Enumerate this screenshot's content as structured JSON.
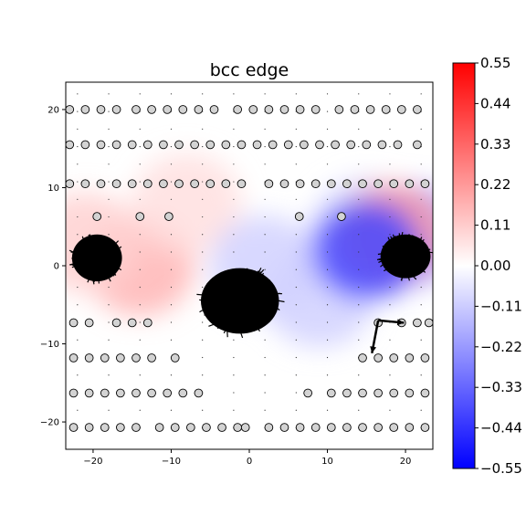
{
  "chart_data": {
    "type": "heatmap",
    "title": "bcc edge",
    "xlabel": "",
    "ylabel": "",
    "xlim": [
      -23.5,
      23.5
    ],
    "ylim": [
      -23.5,
      23.5
    ],
    "x_ticks": [
      -20,
      -10,
      0,
      10,
      20
    ],
    "y_ticks": [
      20,
      10,
      0,
      -10,
      -20
    ],
    "colormap": "bwr",
    "colorbar": {
      "range": [
        -0.55,
        0.55
      ],
      "ticks": [
        "0.55",
        "0.44",
        "0.33",
        "0.22",
        "0.11",
        "0.00",
        "-0.11",
        "-0.22",
        "-0.33",
        "-0.44",
        "-0.55"
      ],
      "placement": "right"
    },
    "field_regions": [
      {
        "x": -14,
        "y": 0,
        "value": 0.16
      },
      {
        "x": -21,
        "y": 3,
        "value": 0.1
      },
      {
        "x": -8,
        "y": 8,
        "value": 0.07
      },
      {
        "x": 2,
        "y": 0,
        "value": -0.1
      },
      {
        "x": 9,
        "y": -4,
        "value": -0.1
      },
      {
        "x": 15,
        "y": 5,
        "value": -0.07
      },
      {
        "x": 21,
        "y": 4,
        "value": -0.2
      },
      {
        "x": 18,
        "y": 4,
        "value": 0.22
      },
      {
        "x": 15,
        "y": 2,
        "value": -0.4
      }
    ],
    "atom_rows": [
      {
        "y": 20,
        "xs": [
          -23,
          -21,
          -19,
          -17,
          -14.5,
          -12.5,
          -10.5,
          -8.5,
          -6.5,
          -4.5,
          -1.5,
          0.5,
          2.5,
          4.5,
          6.5,
          8.5,
          11.5,
          13.5,
          15.5,
          17.5,
          19.5,
          21.5
        ]
      },
      {
        "y": 15.5,
        "xs": [
          -23,
          -21,
          -19,
          -17,
          -15,
          -13,
          -11,
          -9,
          -7,
          -5,
          -3,
          -1,
          1,
          3,
          5,
          7,
          9,
          11,
          13,
          15,
          17,
          19,
          21.5
        ]
      },
      {
        "y": 10.5,
        "xs": [
          -23,
          -21,
          -19,
          -17,
          -15,
          -13,
          -11,
          -9,
          -7,
          -5,
          -3,
          -1,
          2.5,
          4.5,
          6.5,
          8.5,
          10.5,
          12.5,
          14.5,
          16.5,
          18.5,
          20.5,
          22.5
        ]
      },
      {
        "y": 6.3,
        "xs": [
          -19.5,
          -14,
          -10.3,
          6.4,
          11.8
        ]
      },
      {
        "y": -7.3,
        "xs": [
          -22.5,
          -20.5,
          -17,
          -15,
          -13,
          16.5,
          19.5,
          21.5,
          23
        ]
      },
      {
        "y": -11.8,
        "xs": [
          -22.5,
          -20.5,
          -18.5,
          -16.5,
          -14.5,
          -12.5,
          -9.5,
          14.5,
          16.5,
          18.5,
          20.5,
          22.5
        ]
      },
      {
        "y": -16.3,
        "xs": [
          -22.5,
          -20.5,
          -18.5,
          -16.5,
          -14.5,
          -12.5,
          -10.5,
          -8.5,
          -6.5,
          7.5,
          10.5,
          12.5,
          14.5,
          16.5,
          18.5,
          20.5,
          22.5
        ]
      },
      {
        "y": -20.7,
        "xs": [
          -22.5,
          -20.5,
          -18.5,
          -16.5,
          -14.5,
          -11.5,
          -9.5,
          -7.5,
          -5.5,
          -3.5,
          -1.5,
          -0.5,
          2.5,
          4.5,
          6.5,
          8.5,
          10.5,
          12.5,
          14.5,
          16.5,
          18.5,
          20.5,
          22.5
        ]
      }
    ],
    "displaced_clusters": [
      {
        "x": -19.5,
        "y": 1.0,
        "rx": 3.2,
        "ry": 3.0
      },
      {
        "x": -1.2,
        "y": -4.5,
        "rx": 5.0,
        "ry": 4.2
      },
      {
        "x": 20.0,
        "y": 1.2,
        "rx": 3.2,
        "ry": 2.8
      }
    ],
    "quiver_arrows": [
      {
        "x": 16.5,
        "y": -7.0,
        "dx": -0.8,
        "dy": -4.2
      },
      {
        "x": 16.5,
        "y": -7.0,
        "dx": 3.3,
        "dy": -0.3
      },
      {
        "x": -20.5,
        "y": 4.0,
        "dx": 0.6,
        "dy": -1.5
      }
    ]
  }
}
